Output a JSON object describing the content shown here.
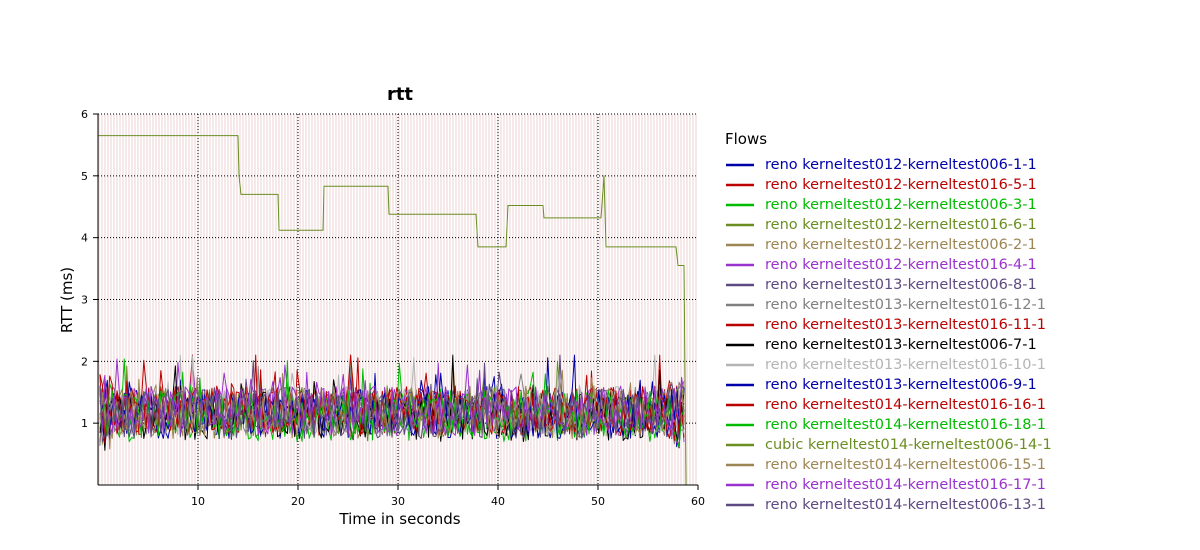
{
  "chart_data": {
    "type": "line",
    "title": "rtt",
    "xlabel": "Time in seconds",
    "ylabel": "RTT (ms)",
    "xlim": [
      0,
      60
    ],
    "ylim": [
      0,
      6
    ],
    "xticks": [
      10,
      20,
      30,
      40,
      50,
      60
    ],
    "yticks": [
      1,
      2,
      3,
      4,
      5,
      6
    ],
    "grid": "dotted, major ticks",
    "legend": {
      "title": "Flows",
      "placement": "right"
    },
    "series": [
      {
        "name": "reno kerneltest012-kerneltest006-1-1",
        "color": "#0000aa",
        "mean": 1.15
      },
      {
        "name": "reno kerneltest012-kerneltest016-5-1",
        "color": "#bb0000",
        "mean": 1.2
      },
      {
        "name": "reno kerneltest012-kerneltest006-3-1",
        "color": "#00bb00",
        "mean": 1.1
      },
      {
        "name": "reno kerneltest012-kerneltest016-6-1",
        "color": "#6b8e23",
        "mean": 1.2
      },
      {
        "name": "reno kerneltest012-kerneltest006-2-1",
        "color": "#9c8654",
        "mean": 1.15
      },
      {
        "name": "reno kerneltest012-kerneltest016-4-1",
        "color": "#9932cc",
        "mean": 1.2
      },
      {
        "name": "reno kerneltest013-kerneltest006-8-1",
        "color": "#5e4a82",
        "mean": 1.15
      },
      {
        "name": "reno kerneltest013-kerneltest016-12-1",
        "color": "#808080",
        "mean": 1.2
      },
      {
        "name": "reno kerneltest013-kerneltest016-11-1",
        "color": "#bb0000",
        "mean": 1.2
      },
      {
        "name": "reno kerneltest013-kerneltest006-7-1",
        "color": "#000000",
        "mean": 1.1
      },
      {
        "name": "reno kerneltest013-kerneltest016-10-1",
        "color": "#b4b4b4",
        "mean": 1.2
      },
      {
        "name": "reno kerneltest013-kerneltest006-9-1",
        "color": "#0000aa",
        "mean": 1.15
      },
      {
        "name": "reno kerneltest014-kerneltest016-16-1",
        "color": "#bb0000",
        "mean": 1.2
      },
      {
        "name": "reno kerneltest014-kerneltest016-18-1",
        "color": "#00bb00",
        "mean": 1.15
      },
      {
        "name": "cubic kerneltest014-kerneltest006-14-1",
        "color": "#6b8e23",
        "steps": [
          [
            0,
            5.65
          ],
          [
            14,
            5.65
          ],
          [
            14.1,
            5.0
          ],
          [
            14.3,
            4.7
          ],
          [
            18,
            4.7
          ],
          [
            18.1,
            4.12
          ],
          [
            22.5,
            4.12
          ],
          [
            22.6,
            4.83
          ],
          [
            29,
            4.83
          ],
          [
            29.1,
            4.38
          ],
          [
            37.8,
            4.38
          ],
          [
            38,
            3.85
          ],
          [
            40.8,
            3.85
          ],
          [
            41,
            4.52
          ],
          [
            44.5,
            4.52
          ],
          [
            44.6,
            4.32
          ],
          [
            50.3,
            4.32
          ],
          [
            50.6,
            5.0
          ],
          [
            50.8,
            3.85
          ],
          [
            57.8,
            3.85
          ],
          [
            58,
            3.55
          ],
          [
            58.6,
            3.55
          ],
          [
            58.8,
            0.0
          ]
        ]
      },
      {
        "name": "reno kerneltest014-kerneltest006-15-1",
        "color": "#9c8654",
        "mean": 1.15
      },
      {
        "name": "reno kerneltest014-kerneltest016-17-1",
        "color": "#9932cc",
        "mean": 1.2
      },
      {
        "name": "reno kerneltest014-kerneltest006-13-1",
        "color": "#5e4a82",
        "mean": 1.15
      }
    ]
  }
}
